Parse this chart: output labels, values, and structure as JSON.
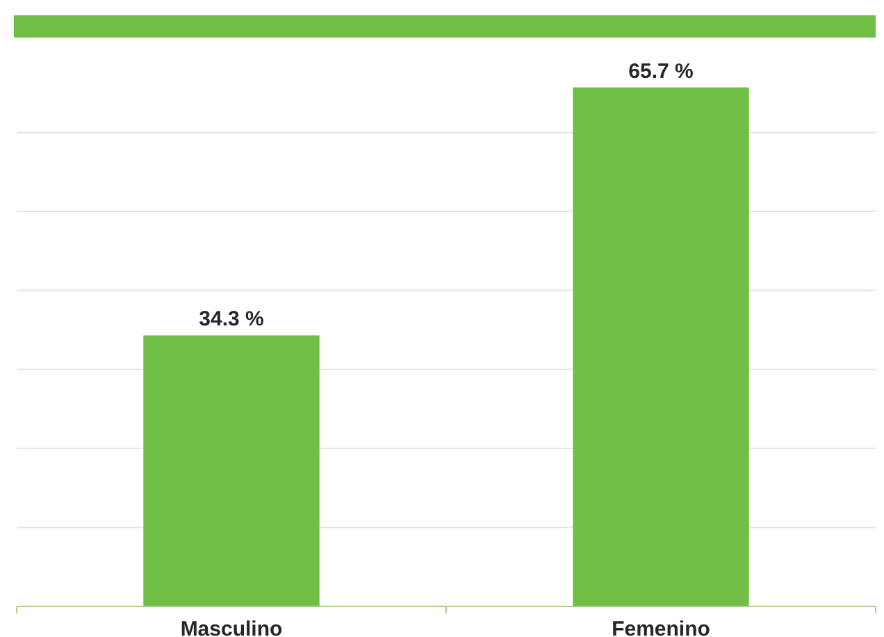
{
  "chart_data": {
    "type": "bar",
    "categories": [
      "Masculino",
      "Femenino"
    ],
    "values": [
      34.3,
      65.7
    ],
    "value_labels": [
      "34.3 %",
      "65.7 %"
    ],
    "color": "#70bf44",
    "yticks": [
      {
        "value": 0,
        "label": null
      },
      {
        "value": 10,
        "label": null
      },
      {
        "value": 20,
        "label": null
      },
      {
        "value": 30,
        "label": null
      },
      {
        "value": 40,
        "label": null
      },
      {
        "value": 50,
        "label": null
      },
      {
        "value": 60,
        "label": null
      }
    ],
    "grid": "y",
    "tick_labels": "x"
  }
}
